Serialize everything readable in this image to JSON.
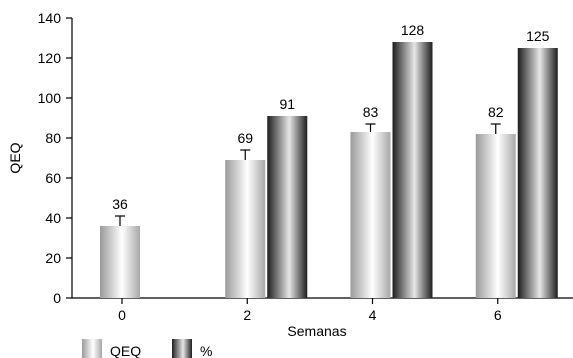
{
  "chart_data": {
    "type": "bar",
    "ylabel": "QEQ",
    "xlabel": "Semanas",
    "ylim": [
      0,
      140
    ],
    "yticks": [
      0,
      20,
      40,
      60,
      80,
      100,
      120,
      140
    ],
    "categories": [
      "0",
      "2",
      "4",
      "6"
    ],
    "series": [
      {
        "name": "QEQ",
        "values": [
          36,
          69,
          83,
          82
        ],
        "data_labels": [
          "36",
          "69",
          "83",
          "82"
        ],
        "error_upper": [
          41,
          74,
          87,
          87
        ],
        "gradient": [
          "#9a9a9a",
          "#ffffff",
          "#a8a8a8"
        ]
      },
      {
        "name": "%",
        "values": [
          null,
          91,
          128,
          125
        ],
        "data_labels": [
          "",
          "91",
          "128",
          "125"
        ],
        "error_upper": [
          null,
          null,
          null,
          null
        ],
        "gradient": [
          "#1e1e1e",
          "#e6e6e6",
          "#1e1e1e"
        ]
      }
    ],
    "legend": "bottom-left",
    "grid": false
  }
}
